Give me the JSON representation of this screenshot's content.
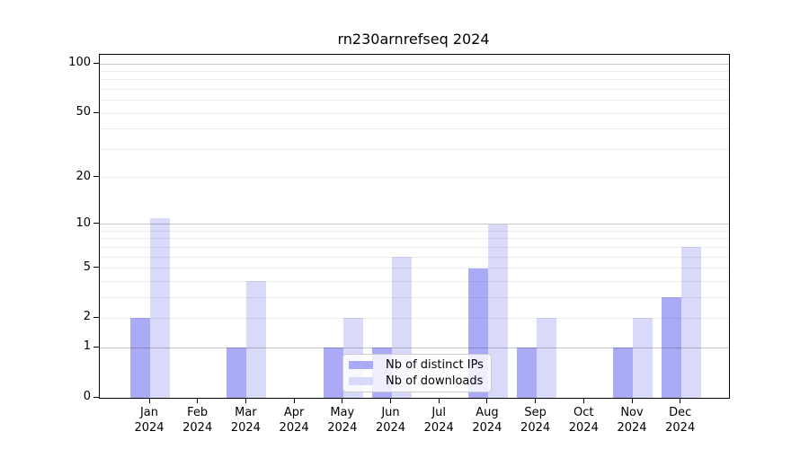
{
  "chart_data": {
    "type": "bar",
    "title": "rn230arnrefseq 2024",
    "categories": [
      "Jan",
      "Feb",
      "Mar",
      "Apr",
      "May",
      "Jun",
      "Jul",
      "Aug",
      "Sep",
      "Oct",
      "Nov",
      "Dec"
    ],
    "x_year": "2024",
    "series": [
      {
        "name": "Nb of distinct IPs",
        "color": "#aaaaf7",
        "values": [
          2,
          0,
          1,
          0,
          1,
          1,
          0,
          5,
          1,
          0,
          1,
          3
        ]
      },
      {
        "name": "Nb of downloads",
        "color": "#d9d9f9",
        "values": [
          11,
          0,
          4,
          0,
          2,
          6,
          0,
          10,
          2,
          0,
          2,
          7
        ]
      }
    ],
    "yscale": "log10(1+x)",
    "ylim": [
      0,
      100
    ],
    "ytick_values": [
      100,
      50,
      20,
      10,
      5,
      2,
      1,
      0
    ],
    "ytick_labels": [
      "100",
      "50",
      "20",
      "10",
      "5",
      "2",
      "1",
      "0"
    ],
    "grid_major_values": [
      1,
      10,
      100
    ],
    "grid_minor_values": [
      2,
      3,
      4,
      5,
      6,
      7,
      8,
      9,
      20,
      30,
      40,
      50,
      60,
      70,
      80,
      90
    ],
    "grid": "horizontal",
    "legend_position": "lower-center-inside"
  },
  "styles": {
    "major_grid_color": "rgba(0,0,0,0.22)",
    "minor_grid_color": "rgba(0,0,0,0.07)",
    "axis_color": "#000000",
    "background": "#ffffff",
    "legend_border": "#cccccc",
    "legend_background": "rgba(255,255,255,0.8)"
  }
}
